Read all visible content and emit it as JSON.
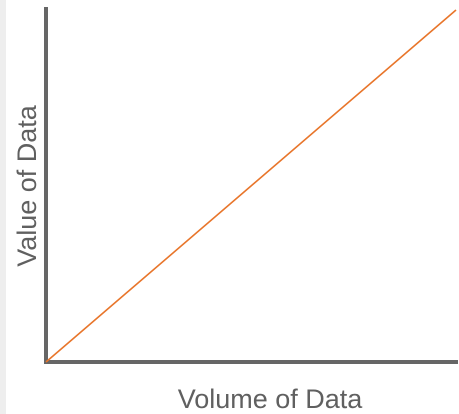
{
  "chart_data": {
    "type": "line",
    "xlabel": "Volume of Data",
    "ylabel": "Value of Data",
    "xlim": [
      0,
      1
    ],
    "ylim": [
      0,
      1
    ],
    "grid": false,
    "legend": "none",
    "ticks": "none",
    "series": [
      {
        "x": [
          0,
          1
        ],
        "y": [
          0,
          1
        ],
        "color": "#e8752a"
      }
    ],
    "axis_color": "#666666"
  }
}
